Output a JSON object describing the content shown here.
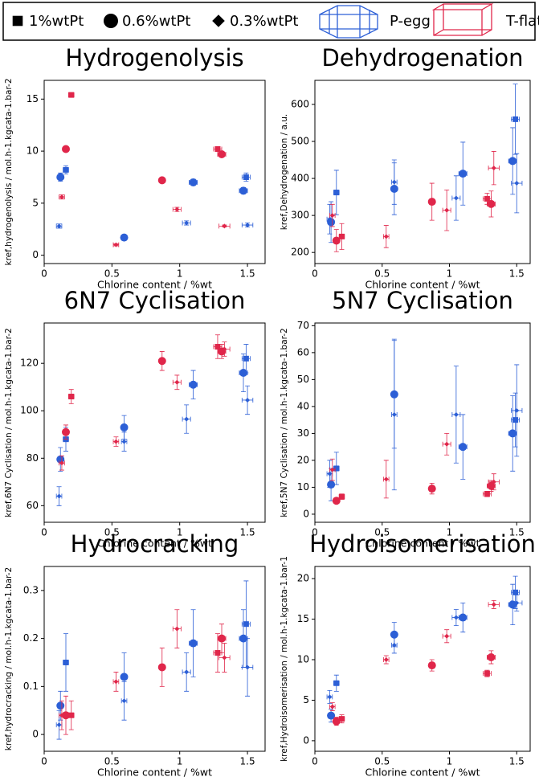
{
  "legend": {
    "loadings": [
      {
        "label": "1%wtPt",
        "marker": "square"
      },
      {
        "label": "0.6%wtPt",
        "marker": "circle"
      },
      {
        "label": "0.3%wtPt",
        "marker": "diamond"
      }
    ],
    "supports": [
      {
        "label": "P-egg",
        "color": "#2c5fd6"
      },
      {
        "label": "T-flat",
        "color": "#e0264a"
      }
    ]
  },
  "chart_data": [
    {
      "type": "scatter",
      "title": "Hydrogenolysis",
      "title_color": "#22a82a",
      "xlabel": "Chlorine content / %wt",
      "ylabel": "kref,hydrogenolysis / mol.h-1.kgcata-1.bar-2",
      "xlim": [
        0,
        1.63
      ],
      "xticks": [
        0,
        0.5,
        1,
        1.5
      ],
      "ylim": [
        -0.8,
        16.8
      ],
      "yticks": [
        0,
        5,
        10,
        15
      ],
      "series": [
        {
          "color": "#2c5fd6",
          "marker": "square",
          "x": [
            0.16,
            1.49
          ],
          "values": [
            8.2,
            7.5
          ],
          "xerr": [
            0.02,
            0.03
          ],
          "yerr": [
            0.4,
            0.4
          ]
        },
        {
          "color": "#2c5fd6",
          "marker": "circle",
          "x": [
            0.12,
            0.59,
            1.1,
            1.47
          ],
          "values": [
            7.5,
            1.7,
            7.0,
            6.2
          ],
          "xerr": [
            0.02,
            0.02,
            0.03,
            0.03
          ],
          "yerr": [
            0.4,
            0.2,
            0.3,
            0.3
          ]
        },
        {
          "color": "#2c5fd6",
          "marker": "diamond",
          "x": [
            0.11,
            0.59,
            1.05,
            1.5
          ],
          "values": [
            2.8,
            1.7,
            3.1,
            2.9
          ],
          "xerr": [
            0.02,
            0.02,
            0.03,
            0.04
          ],
          "yerr": [
            0.2,
            0.2,
            0.2,
            0.2
          ]
        },
        {
          "color": "#e0264a",
          "marker": "square",
          "x": [
            0.2,
            1.28
          ],
          "values": [
            15.4,
            10.2
          ],
          "xerr": [
            0.02,
            0.03
          ],
          "yerr": [
            0.2,
            0.2
          ]
        },
        {
          "color": "#e0264a",
          "marker": "circle",
          "x": [
            0.16,
            0.87,
            1.31
          ],
          "values": [
            10.2,
            7.2,
            9.7
          ],
          "xerr": [
            0.02,
            0.02,
            0.03
          ],
          "yerr": [
            0.2,
            0.2,
            0.2
          ]
        },
        {
          "color": "#e0264a",
          "marker": "diamond",
          "x": [
            0.13,
            0.53,
            0.98,
            1.33
          ],
          "values": [
            5.6,
            1.0,
            4.4,
            2.8
          ],
          "xerr": [
            0.02,
            0.02,
            0.03,
            0.04
          ],
          "yerr": [
            0.2,
            0.1,
            0.2,
            0.1
          ]
        }
      ]
    },
    {
      "type": "scatter",
      "title": "Dehydrogenation",
      "title_color": "#f0922a",
      "xlabel": "Chlorine content / %wt",
      "ylabel": "kref,Dehydrogenation / a.u.",
      "xlim": [
        0,
        1.6
      ],
      "xticks": [
        0,
        0.5,
        1,
        1.5
      ],
      "ylim": [
        170,
        665
      ],
      "yticks": [
        200,
        300,
        400,
        500,
        600
      ],
      "series": [
        {
          "color": "#2c5fd6",
          "marker": "square",
          "x": [
            0.16,
            1.49
          ],
          "values": [
            362,
            560
          ],
          "xerr": [
            0.02,
            0.03
          ],
          "yerr": [
            60,
            95
          ]
        },
        {
          "color": "#2c5fd6",
          "marker": "circle",
          "x": [
            0.12,
            0.59,
            1.1,
            1.47
          ],
          "values": [
            282,
            372,
            413,
            447
          ],
          "xerr": [
            0.02,
            0.02,
            0.03,
            0.03
          ],
          "yerr": [
            55,
            70,
            85,
            90
          ]
        },
        {
          "color": "#2c5fd6",
          "marker": "diamond",
          "x": [
            0.11,
            0.59,
            1.05,
            1.5
          ],
          "values": [
            290,
            390,
            347,
            387
          ],
          "xerr": [
            0.02,
            0.02,
            0.03,
            0.04
          ],
          "yerr": [
            40,
            60,
            60,
            80
          ]
        },
        {
          "color": "#e0264a",
          "marker": "square",
          "x": [
            0.2,
            1.28
          ],
          "values": [
            243,
            345
          ],
          "xerr": [
            0.02,
            0.03
          ],
          "yerr": [
            35,
            15
          ]
        },
        {
          "color": "#e0264a",
          "marker": "circle",
          "x": [
            0.16,
            0.87,
            1.31
          ],
          "values": [
            232,
            337,
            331
          ],
          "xerr": [
            0.02,
            0.02,
            0.03
          ],
          "yerr": [
            30,
            50,
            35
          ]
        },
        {
          "color": "#e0264a",
          "marker": "diamond",
          "x": [
            0.13,
            0.53,
            0.98,
            1.33
          ],
          "values": [
            300,
            243,
            314,
            428
          ],
          "xerr": [
            0.02,
            0.02,
            0.03,
            0.04
          ],
          "yerr": [
            30,
            30,
            55,
            45
          ]
        }
      ]
    },
    {
      "type": "scatter",
      "title": "6N7 Cyclisation",
      "title_color": "#000000",
      "xlabel": "Chlorine content / %wt",
      "ylabel": "kref,6N7 Cyclisation / mol.h-1.kgcata-1.bar-2",
      "xlim": [
        0,
        1.63
      ],
      "xticks": [
        0,
        0.5,
        1,
        1.5
      ],
      "ylim": [
        53,
        137
      ],
      "yticks": [
        60,
        80,
        100,
        120
      ],
      "series": [
        {
          "color": "#2c5fd6",
          "marker": "square",
          "x": [
            0.16,
            1.49
          ],
          "values": [
            88,
            122
          ],
          "xerr": [
            0.02,
            0.03
          ],
          "yerr": [
            5,
            6
          ]
        },
        {
          "color": "#2c5fd6",
          "marker": "circle",
          "x": [
            0.12,
            0.59,
            1.1,
            1.47
          ],
          "values": [
            79.5,
            93,
            111,
            116
          ],
          "xerr": [
            0.02,
            0.02,
            0.03,
            0.03
          ],
          "yerr": [
            5,
            5,
            6,
            8
          ]
        },
        {
          "color": "#2c5fd6",
          "marker": "diamond",
          "x": [
            0.11,
            0.59,
            1.05,
            1.5
          ],
          "values": [
            64,
            87,
            96.5,
            104.5
          ],
          "xerr": [
            0.02,
            0.02,
            0.03,
            0.04
          ],
          "yerr": [
            4,
            4,
            6,
            6
          ]
        },
        {
          "color": "#e0264a",
          "marker": "square",
          "x": [
            0.2,
            1.28
          ],
          "values": [
            106,
            127
          ],
          "xerr": [
            0.02,
            0.03
          ],
          "yerr": [
            3,
            5
          ]
        },
        {
          "color": "#e0264a",
          "marker": "circle",
          "x": [
            0.16,
            0.87,
            1.31
          ],
          "values": [
            91,
            121,
            125
          ],
          "xerr": [
            0.02,
            0.02,
            0.03
          ],
          "yerr": [
            3,
            4,
            3
          ]
        },
        {
          "color": "#e0264a",
          "marker": "diamond",
          "x": [
            0.13,
            0.53,
            0.98,
            1.33
          ],
          "values": [
            78,
            87,
            112,
            126
          ],
          "xerr": [
            0.02,
            0.02,
            0.03,
            0.04
          ],
          "yerr": [
            3,
            2,
            3,
            3
          ]
        }
      ]
    },
    {
      "type": "scatter",
      "title": "5N7 Cyclisation",
      "title_color": "#000000",
      "xlabel": "Chlorine content / %wt",
      "ylabel": "kref,5N7 Cyclisation / mol.h-1.kgcata-1.bar-2",
      "xlim": [
        0,
        1.6
      ],
      "xticks": [
        0,
        0.5,
        1,
        1.5
      ],
      "ylim": [
        -3,
        71
      ],
      "yticks": [
        0,
        10,
        20,
        30,
        40,
        50,
        60,
        70
      ],
      "series": [
        {
          "color": "#2c5fd6",
          "marker": "square",
          "x": [
            0.16,
            1.49
          ],
          "values": [
            17,
            35
          ],
          "xerr": [
            0.02,
            0.03
          ],
          "yerr": [
            6,
            10
          ]
        },
        {
          "color": "#2c5fd6",
          "marker": "circle",
          "x": [
            0.12,
            0.59,
            1.1,
            1.47
          ],
          "values": [
            11,
            44.5,
            25,
            30
          ],
          "xerr": [
            0.02,
            0.02,
            0.03,
            0.03
          ],
          "yerr": [
            6,
            20,
            12,
            14
          ]
        },
        {
          "color": "#2c5fd6",
          "marker": "diamond",
          "x": [
            0.11,
            0.59,
            1.05,
            1.5
          ],
          "values": [
            15,
            37,
            37,
            38.5
          ],
          "xerr": [
            0.02,
            0.02,
            0.03,
            0.04
          ],
          "yerr": [
            5,
            28,
            18,
            17
          ]
        },
        {
          "color": "#e0264a",
          "marker": "square",
          "x": [
            0.2,
            1.28
          ],
          "values": [
            6.5,
            7.5
          ],
          "xerr": [
            0.02,
            0.03
          ],
          "yerr": [
            1,
            1
          ]
        },
        {
          "color": "#e0264a",
          "marker": "circle",
          "x": [
            0.16,
            0.87,
            1.31
          ],
          "values": [
            5,
            9.5,
            10.5
          ],
          "xerr": [
            0.02,
            0.02,
            0.03
          ],
          "yerr": [
            1,
            2,
            2
          ]
        },
        {
          "color": "#e0264a",
          "marker": "diamond",
          "x": [
            0.13,
            0.53,
            0.98,
            1.33
          ],
          "values": [
            16.5,
            13,
            26,
            12
          ],
          "xerr": [
            0.02,
            0.02,
            0.03,
            0.04
          ],
          "yerr": [
            4,
            7,
            4,
            3
          ]
        }
      ]
    },
    {
      "type": "scatter",
      "title": "Hydrocracking",
      "title_color": "#2c5fd6",
      "xlabel": "Chlorine content / %wt",
      "ylabel": "kref,hydrocracking / mol.h-1.kgcata-1.bar-2",
      "xlim": [
        0,
        1.63
      ],
      "xticks": [
        0,
        0.5,
        1,
        1.5
      ],
      "ylim": [
        -0.035,
        0.35
      ],
      "yticks": [
        0,
        0.1,
        0.2,
        0.3
      ],
      "series": [
        {
          "color": "#2c5fd6",
          "marker": "square",
          "x": [
            0.16,
            1.49
          ],
          "values": [
            0.15,
            0.23
          ],
          "xerr": [
            0.02,
            0.03
          ],
          "yerr": [
            0.06,
            0.09
          ]
        },
        {
          "color": "#2c5fd6",
          "marker": "circle",
          "x": [
            0.12,
            0.59,
            1.1,
            1.47
          ],
          "values": [
            0.06,
            0.12,
            0.19,
            0.2
          ],
          "xerr": [
            0.02,
            0.02,
            0.03,
            0.03
          ],
          "yerr": [
            0.03,
            0.05,
            0.07,
            0.06
          ]
        },
        {
          "color": "#2c5fd6",
          "marker": "diamond",
          "x": [
            0.11,
            0.59,
            1.05,
            1.5
          ],
          "values": [
            0.02,
            0.07,
            0.13,
            0.14
          ],
          "xerr": [
            0.02,
            0.02,
            0.03,
            0.04
          ],
          "yerr": [
            0.03,
            0.04,
            0.04,
            0.06
          ]
        },
        {
          "color": "#e0264a",
          "marker": "square",
          "x": [
            0.2,
            1.28
          ],
          "values": [
            0.04,
            0.17
          ],
          "xerr": [
            0.02,
            0.03
          ],
          "yerr": [
            0.03,
            0.04
          ]
        },
        {
          "color": "#e0264a",
          "marker": "circle",
          "x": [
            0.16,
            0.87,
            1.31
          ],
          "values": [
            0.04,
            0.14,
            0.2
          ],
          "xerr": [
            0.02,
            0.02,
            0.03
          ],
          "yerr": [
            0.04,
            0.04,
            0.03
          ]
        },
        {
          "color": "#e0264a",
          "marker": "diamond",
          "x": [
            0.13,
            0.53,
            0.98,
            1.33
          ],
          "values": [
            0.04,
            0.11,
            0.22,
            0.16
          ],
          "xerr": [
            0.02,
            0.02,
            0.03,
            0.04
          ],
          "yerr": [
            0.03,
            0.02,
            0.04,
            0.03
          ]
        }
      ]
    },
    {
      "type": "scatter",
      "title": "Hydroisomerisation",
      "title_color": "#e8283a",
      "xlabel": "Chlorine content / %wt",
      "ylabel": "kref,Hydroisomerisation / mol.h-1.kgcata-1.bar-1",
      "xlim": [
        0,
        1.6
      ],
      "xticks": [
        0,
        0.5,
        1,
        1.5
      ],
      "ylim": [
        -1.3,
        21.5
      ],
      "yticks": [
        0,
        5,
        10,
        15,
        20
      ],
      "series": [
        {
          "color": "#2c5fd6",
          "marker": "square",
          "x": [
            0.16,
            1.49
          ],
          "values": [
            7.1,
            18.3
          ],
          "xerr": [
            0.02,
            0.03
          ],
          "yerr": [
            1,
            2
          ]
        },
        {
          "color": "#2c5fd6",
          "marker": "circle",
          "x": [
            0.12,
            0.59,
            1.1,
            1.47
          ],
          "values": [
            3.1,
            13.1,
            15.2,
            16.8
          ],
          "xerr": [
            0.02,
            0.02,
            0.03,
            0.03
          ],
          "yerr": [
            0.8,
            1.5,
            1.8,
            2.5
          ]
        },
        {
          "color": "#2c5fd6",
          "marker": "diamond",
          "x": [
            0.11,
            0.59,
            1.05,
            1.5
          ],
          "values": [
            5.4,
            11.8,
            15.2,
            17.0
          ],
          "xerr": [
            0.02,
            0.02,
            0.03,
            0.04
          ],
          "yerr": [
            0.8,
            1,
            1,
            1
          ]
        },
        {
          "color": "#e0264a",
          "marker": "square",
          "x": [
            0.2,
            1.28
          ],
          "values": [
            2.7,
            8.3
          ],
          "xerr": [
            0.02,
            0.03
          ],
          "yerr": [
            0.5,
            0.4
          ]
        },
        {
          "color": "#e0264a",
          "marker": "circle",
          "x": [
            0.16,
            0.87,
            1.31
          ],
          "values": [
            2.4,
            9.3,
            10.3
          ],
          "xerr": [
            0.02,
            0.02,
            0.03
          ],
          "yerr": [
            0.5,
            0.7,
            0.8
          ]
        },
        {
          "color": "#e0264a",
          "marker": "diamond",
          "x": [
            0.13,
            0.53,
            0.98,
            1.33
          ],
          "values": [
            4.2,
            10.0,
            12.9,
            16.8
          ],
          "xerr": [
            0.02,
            0.02,
            0.03,
            0.04
          ],
          "yerr": [
            0.5,
            0.5,
            0.8,
            0.5
          ]
        }
      ]
    }
  ]
}
